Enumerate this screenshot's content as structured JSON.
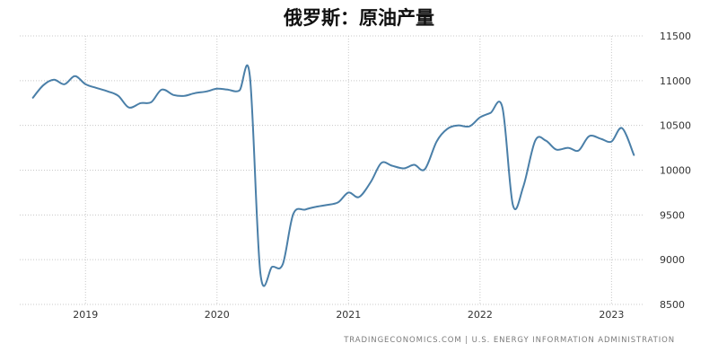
{
  "chart_data": {
    "type": "line",
    "title": "俄罗斯：原油产量",
    "xlabel": "",
    "ylabel": "",
    "x_tick_labels": [
      "2019",
      "2020",
      "2021",
      "2022",
      "2023"
    ],
    "y_tick_labels": [
      "11500",
      "11000",
      "10500",
      "10000",
      "9500",
      "9000",
      "8500"
    ],
    "ylim": [
      8500,
      11500
    ],
    "grid": true,
    "line_color": "#4a7fa8",
    "series": [
      {
        "x": [
          2018.6,
          2018.68,
          2018.76,
          2018.84,
          2018.92,
          2019.0,
          2019.08,
          2019.17,
          2019.25,
          2019.33,
          2019.42,
          2019.5,
          2019.58,
          2019.67,
          2019.75,
          2019.83,
          2019.92,
          2020.0,
          2020.08,
          2020.17,
          2020.25,
          2020.33,
          2020.42,
          2020.5,
          2020.58,
          2020.67,
          2020.75,
          2020.83,
          2020.92,
          2021.0,
          2021.08,
          2021.17,
          2021.25,
          2021.33,
          2021.42,
          2021.5,
          2021.58,
          2021.67,
          2021.75,
          2021.83,
          2021.92,
          2022.0,
          2022.08,
          2022.17,
          2022.25,
          2022.33,
          2022.42,
          2022.5,
          2022.58,
          2022.67,
          2022.75,
          2022.83,
          2022.92,
          2023.0,
          2023.08,
          2023.17
        ],
        "values": [
          10810,
          10950,
          11010,
          10960,
          11050,
          10960,
          10920,
          10880,
          10830,
          10700,
          10750,
          10760,
          10900,
          10840,
          10830,
          10860,
          10880,
          10910,
          10900,
          10890,
          11050,
          8850,
          8920,
          8950,
          9510,
          9560,
          9590,
          9610,
          9640,
          9750,
          9700,
          9870,
          10080,
          10050,
          10020,
          10060,
          10010,
          10320,
          10460,
          10500,
          10490,
          10590,
          10640,
          10700,
          9610,
          9820,
          10330,
          10330,
          10230,
          10250,
          10220,
          10380,
          10350,
          10320,
          10470,
          10170
        ]
      }
    ],
    "source_text": "TRADINGECONOMICS.COM  |  U.S. ENERGY INFORMATION ADMINISTRATION"
  }
}
